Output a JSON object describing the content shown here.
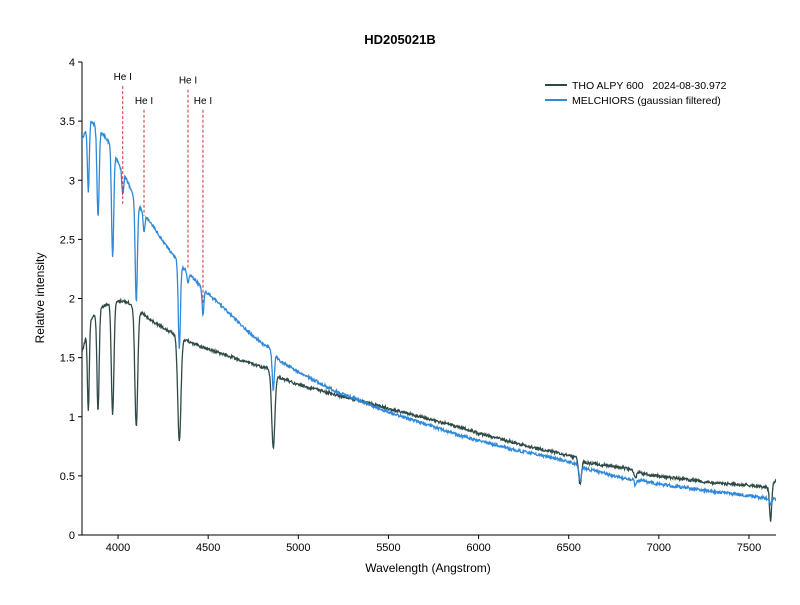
{
  "chart_data": {
    "type": "line",
    "title": "HD205021B",
    "xlabel": "Wavelength (Angstrom)",
    "ylabel": "Relative intensity",
    "xlim": [
      3800,
      7650
    ],
    "ylim": [
      0,
      4
    ],
    "xticks": [
      4000,
      4500,
      5000,
      5500,
      6000,
      6500,
      7000,
      7500
    ],
    "yticks": [
      0,
      0.5,
      1,
      1.5,
      2,
      2.5,
      3,
      3.5,
      4
    ],
    "ytick_labels": [
      "0",
      "0.5",
      "1",
      "1.5",
      "2",
      "2.5",
      "3",
      "3.5",
      "4"
    ],
    "legend_position": "top-right",
    "series": [
      {
        "name": "THO ALPY 600   2024-08-30.972",
        "color": "#2f4a46",
        "continuum": [
          [
            3800,
            1.55
          ],
          [
            3850,
            1.82
          ],
          [
            3900,
            1.92
          ],
          [
            3950,
            1.96
          ],
          [
            4000,
            1.98
          ],
          [
            4050,
            1.97
          ],
          [
            4100,
            1.92
          ],
          [
            4150,
            1.86
          ],
          [
            4200,
            1.8
          ],
          [
            4250,
            1.75
          ],
          [
            4300,
            1.71
          ],
          [
            4350,
            1.67
          ],
          [
            4400,
            1.63
          ],
          [
            4450,
            1.6
          ],
          [
            4500,
            1.57
          ],
          [
            4600,
            1.52
          ],
          [
            4700,
            1.47
          ],
          [
            4800,
            1.42
          ],
          [
            4850,
            1.4
          ],
          [
            4900,
            1.33
          ],
          [
            5000,
            1.27
          ],
          [
            5100,
            1.23
          ],
          [
            5200,
            1.19
          ],
          [
            5300,
            1.15
          ],
          [
            5400,
            1.11
          ],
          [
            5500,
            1.07
          ],
          [
            5600,
            1.03
          ],
          [
            5700,
            0.99
          ],
          [
            5800,
            0.95
          ],
          [
            5900,
            0.91
          ],
          [
            6000,
            0.86
          ],
          [
            6100,
            0.82
          ],
          [
            6200,
            0.78
          ],
          [
            6300,
            0.74
          ],
          [
            6400,
            0.71
          ],
          [
            6500,
            0.67
          ],
          [
            6560,
            0.65
          ],
          [
            6600,
            0.61
          ],
          [
            6700,
            0.59
          ],
          [
            6800,
            0.57
          ],
          [
            6880,
            0.54
          ],
          [
            6900,
            0.52
          ],
          [
            7000,
            0.5
          ],
          [
            7100,
            0.48
          ],
          [
            7200,
            0.46
          ],
          [
            7300,
            0.44
          ],
          [
            7400,
            0.43
          ],
          [
            7500,
            0.42
          ],
          [
            7600,
            0.4
          ],
          [
            7650,
            0.46
          ]
        ],
        "absorption_lines": [
          {
            "center": 3835,
            "depth": 0.7,
            "width": 5
          },
          {
            "center": 3889,
            "depth": 0.85,
            "width": 6
          },
          {
            "center": 3970,
            "depth": 0.95,
            "width": 7
          },
          {
            "center": 4101,
            "depth": 1.0,
            "width": 8
          },
          {
            "center": 4340,
            "depth": 0.88,
            "width": 9
          },
          {
            "center": 4861,
            "depth": 0.65,
            "width": 9
          },
          {
            "center": 6563,
            "depth": 0.22,
            "width": 8
          },
          {
            "center": 6870,
            "depth": 0.06,
            "width": 6
          },
          {
            "center": 7620,
            "depth": 0.3,
            "width": 6
          }
        ]
      },
      {
        "name": "MELCHIORS (gaussian filtered)",
        "color": "#2f88d8",
        "continuum": [
          [
            3800,
            3.35
          ],
          [
            3850,
            3.5
          ],
          [
            3900,
            3.42
          ],
          [
            3950,
            3.32
          ],
          [
            4000,
            3.15
          ],
          [
            4050,
            3.0
          ],
          [
            4100,
            2.82
          ],
          [
            4150,
            2.7
          ],
          [
            4200,
            2.6
          ],
          [
            4250,
            2.48
          ],
          [
            4300,
            2.38
          ],
          [
            4350,
            2.28
          ],
          [
            4400,
            2.2
          ],
          [
            4450,
            2.12
          ],
          [
            4500,
            2.04
          ],
          [
            4600,
            1.9
          ],
          [
            4700,
            1.75
          ],
          [
            4800,
            1.62
          ],
          [
            4850,
            1.57
          ],
          [
            4900,
            1.47
          ],
          [
            5000,
            1.38
          ],
          [
            5100,
            1.3
          ],
          [
            5200,
            1.22
          ],
          [
            5300,
            1.16
          ],
          [
            5400,
            1.1
          ],
          [
            5500,
            1.04
          ],
          [
            5600,
            0.99
          ],
          [
            5700,
            0.94
          ],
          [
            5800,
            0.89
          ],
          [
            5900,
            0.84
          ],
          [
            6000,
            0.8
          ],
          [
            6100,
            0.76
          ],
          [
            6200,
            0.72
          ],
          [
            6300,
            0.69
          ],
          [
            6400,
            0.66
          ],
          [
            6500,
            0.62
          ],
          [
            6600,
            0.56
          ],
          [
            6700,
            0.52
          ],
          [
            6800,
            0.48
          ],
          [
            6900,
            0.46
          ],
          [
            7000,
            0.43
          ],
          [
            7100,
            0.41
          ],
          [
            7200,
            0.39
          ],
          [
            7300,
            0.37
          ],
          [
            7400,
            0.35
          ],
          [
            7500,
            0.33
          ],
          [
            7600,
            0.31
          ],
          [
            7650,
            0.3
          ]
        ],
        "absorption_lines": [
          {
            "center": 3835,
            "depth": 0.55,
            "width": 5
          },
          {
            "center": 3889,
            "depth": 0.75,
            "width": 6
          },
          {
            "center": 3970,
            "depth": 0.9,
            "width": 6
          },
          {
            "center": 4026,
            "depth": 0.2,
            "width": 5
          },
          {
            "center": 4101,
            "depth": 0.85,
            "width": 6
          },
          {
            "center": 4144,
            "depth": 0.15,
            "width": 5
          },
          {
            "center": 4340,
            "depth": 0.72,
            "width": 6
          },
          {
            "center": 4388,
            "depth": 0.1,
            "width": 5
          },
          {
            "center": 4471,
            "depth": 0.22,
            "width": 5
          },
          {
            "center": 4861,
            "depth": 0.32,
            "width": 6
          },
          {
            "center": 6563,
            "depth": 0.12,
            "width": 6
          },
          {
            "center": 6870,
            "depth": 0.05,
            "width": 5
          },
          {
            "center": 7620,
            "depth": 0.06,
            "width": 5
          }
        ]
      }
    ],
    "annotations": [
      {
        "label": "He I",
        "x": 4026,
        "y_top": 3.83,
        "y_bottom": 2.8,
        "label_y": 3.83
      },
      {
        "label": "He I",
        "x": 4144,
        "y_top": 3.63,
        "y_bottom": 2.7,
        "label_y": 3.63
      },
      {
        "label": "He I",
        "x": 4388,
        "y_top": 3.8,
        "y_bottom": 2.25,
        "label_y": 3.8
      },
      {
        "label": "He I",
        "x": 4471,
        "y_top": 3.63,
        "y_bottom": 1.95,
        "label_y": 3.63
      }
    ],
    "annotation_color": "#d43030"
  }
}
